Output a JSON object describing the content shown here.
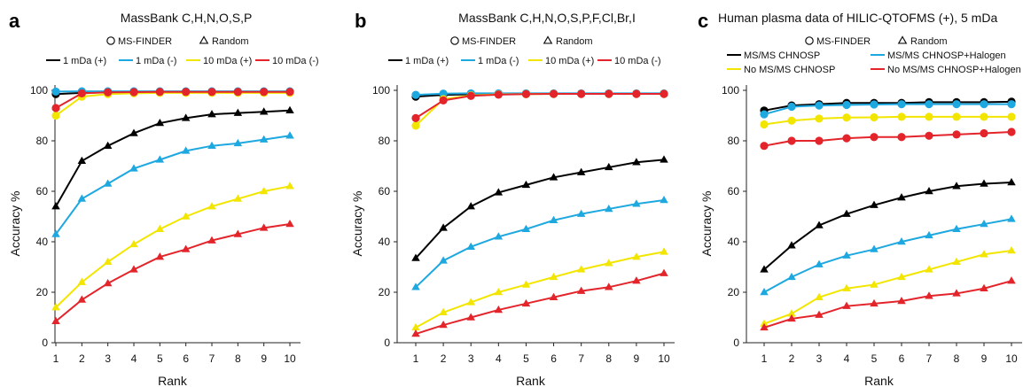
{
  "chart_data": [
    {
      "type": "line",
      "panel_label": "a",
      "title": "MassBank C,H,N,O,S,P",
      "xlabel": "Rank",
      "ylabel": "Accuracy %",
      "ylim": [
        0,
        100
      ],
      "yticks": [
        "0",
        "20",
        "40",
        "60",
        "80",
        "100"
      ],
      "categories": [
        "1",
        "2",
        "3",
        "4",
        "5",
        "6",
        "7",
        "8",
        "9",
        "10"
      ],
      "marker_legend": [
        "MS-FINDER",
        "Random"
      ],
      "series_names": [
        "1 mDa (+)",
        "1 mDa (-)",
        "10 mDa (+)",
        "10 mDa (-)"
      ],
      "series_colors": [
        "#000000",
        "#1ea8e0",
        "#f2e600",
        "#e3242b"
      ],
      "series": [
        {
          "name": "1 mDa (+)",
          "marker": "circle",
          "color": "#000000",
          "values": [
            98.5,
            99.0,
            99.2,
            99.3,
            99.4,
            99.4,
            99.4,
            99.4,
            99.4,
            99.4
          ]
        },
        {
          "name": "1 mDa (-)",
          "marker": "circle",
          "color": "#1ea8e0",
          "values": [
            99.5,
            99.6,
            99.6,
            99.6,
            99.6,
            99.6,
            99.6,
            99.6,
            99.6,
            99.6
          ]
        },
        {
          "name": "10 mDa (+)",
          "marker": "circle",
          "color": "#f2e600",
          "values": [
            90.0,
            97.5,
            98.5,
            98.8,
            99.0,
            99.0,
            99.0,
            99.0,
            99.0,
            99.0
          ]
        },
        {
          "name": "10 mDa (-)",
          "marker": "circle",
          "color": "#e3242b",
          "values": [
            93.0,
            98.8,
            99.2,
            99.3,
            99.4,
            99.4,
            99.4,
            99.4,
            99.4,
            99.4
          ]
        },
        {
          "name": "1 mDa (+)",
          "marker": "triangle",
          "color": "#000000",
          "values": [
            54,
            72,
            78,
            83,
            87,
            89,
            90.5,
            91,
            91.5,
            92
          ]
        },
        {
          "name": "1 mDa (-)",
          "marker": "triangle",
          "color": "#1ea8e0",
          "values": [
            43,
            57,
            63,
            69,
            72.5,
            76,
            78,
            79,
            80.5,
            82
          ]
        },
        {
          "name": "10 mDa (+)",
          "marker": "triangle",
          "color": "#f2e600",
          "values": [
            14,
            24,
            32,
            39,
            45,
            50,
            54,
            57,
            60,
            62
          ]
        },
        {
          "name": "10 mDa (-)",
          "marker": "triangle",
          "color": "#e3242b",
          "values": [
            8.5,
            17,
            23.5,
            29,
            34,
            37,
            40.5,
            43,
            45.5,
            47
          ]
        }
      ]
    },
    {
      "type": "line",
      "panel_label": "b",
      "title": "MassBank C,H,N,O,S,P,F,Cl,Br,I",
      "xlabel": "Rank",
      "ylabel": "Accuracy %",
      "ylim": [
        0,
        100
      ],
      "yticks": [
        "0",
        "20",
        "40",
        "60",
        "80",
        "100"
      ],
      "categories": [
        "1",
        "2",
        "3",
        "4",
        "5",
        "6",
        "7",
        "8",
        "9",
        "10"
      ],
      "marker_legend": [
        "MS-FINDER",
        "Random"
      ],
      "series_names": [
        "1 mDa (+)",
        "1 mDa (-)",
        "10 mDa (+)",
        "10 mDa (-)"
      ],
      "series_colors": [
        "#000000",
        "#1ea8e0",
        "#f2e600",
        "#e3242b"
      ],
      "series": [
        {
          "name": "1 mDa (+)",
          "marker": "circle",
          "color": "#000000",
          "values": [
            97.5,
            98.2,
            98.4,
            98.5,
            98.6,
            98.6,
            98.6,
            98.6,
            98.6,
            98.6
          ]
        },
        {
          "name": "1 mDa (-)",
          "marker": "circle",
          "color": "#1ea8e0",
          "values": [
            98.2,
            98.7,
            98.8,
            98.8,
            98.8,
            98.8,
            98.8,
            98.8,
            98.8,
            98.8
          ]
        },
        {
          "name": "10 mDa (+)",
          "marker": "circle",
          "color": "#f2e600",
          "values": [
            86,
            96.5,
            98.0,
            98.4,
            98.5,
            98.6,
            98.6,
            98.6,
            98.6,
            98.6
          ]
        },
        {
          "name": "10 mDa (-)",
          "marker": "circle",
          "color": "#e3242b",
          "values": [
            89,
            96,
            97.8,
            98.3,
            98.5,
            98.6,
            98.6,
            98.6,
            98.6,
            98.6
          ]
        },
        {
          "name": "1 mDa (+)",
          "marker": "triangle",
          "color": "#000000",
          "values": [
            33.5,
            45.5,
            54,
            59.5,
            62.5,
            65.5,
            67.5,
            69.5,
            71.5,
            72.5
          ]
        },
        {
          "name": "1 mDa (-)",
          "marker": "triangle",
          "color": "#1ea8e0",
          "values": [
            22,
            32.5,
            38,
            42,
            45,
            48.5,
            51,
            53,
            55,
            56.5
          ]
        },
        {
          "name": "10 mDa (+)",
          "marker": "triangle",
          "color": "#f2e600",
          "values": [
            6,
            12,
            16,
            20,
            23,
            26,
            29,
            31.5,
            34,
            36
          ]
        },
        {
          "name": "10 mDa (-)",
          "marker": "triangle",
          "color": "#e3242b",
          "values": [
            3.5,
            7,
            10,
            13,
            15.5,
            18,
            20.5,
            22,
            24.5,
            27.5
          ]
        }
      ]
    },
    {
      "type": "line",
      "panel_label": "c",
      "title": "Human plasma data of HILIC-QTOFMS (+), 5 mDa",
      "xlabel": "Rank",
      "ylabel": "Accuracy %",
      "ylim": [
        0,
        100
      ],
      "yticks": [
        "0",
        "20",
        "40",
        "60",
        "80",
        "100"
      ],
      "categories": [
        "1",
        "2",
        "3",
        "4",
        "5",
        "6",
        "7",
        "8",
        "9",
        "10"
      ],
      "marker_legend": [
        "MS-FINDER",
        "Random"
      ],
      "series_names": [
        "MS/MS CHNOSP",
        "MS/MS CHNOSP+Halogen",
        "No MS/MS CHNOSP",
        "No MS/MS CHNOSP+Halogen"
      ],
      "series_colors": [
        "#000000",
        "#1ea8e0",
        "#f2e600",
        "#e3242b"
      ],
      "series": [
        {
          "name": "MS/MS CHNOSP",
          "marker": "circle",
          "color": "#000000",
          "values": [
            92,
            94,
            94.5,
            95,
            95,
            95,
            95.3,
            95.3,
            95.3,
            95.5
          ]
        },
        {
          "name": "MS/MS CHNOSP+Halogen",
          "marker": "circle",
          "color": "#1ea8e0",
          "values": [
            90.5,
            93.5,
            94,
            94.2,
            94.4,
            94.5,
            94.5,
            94.5,
            94.5,
            94.5
          ]
        },
        {
          "name": "No MS/MS CHNOSP",
          "marker": "circle",
          "color": "#f2e600",
          "values": [
            86.5,
            88,
            88.8,
            89.2,
            89.3,
            89.5,
            89.5,
            89.5,
            89.5,
            89.5
          ]
        },
        {
          "name": "No MS/MS CHNOSP+Halogen",
          "marker": "circle",
          "color": "#e3242b",
          "values": [
            78,
            80,
            80,
            81,
            81.5,
            81.5,
            82,
            82.5,
            83,
            83.5
          ]
        },
        {
          "name": "MS/MS CHNOSP",
          "marker": "triangle",
          "color": "#000000",
          "values": [
            29,
            38.5,
            46.5,
            51,
            54.5,
            57.5,
            60,
            62,
            63,
            63.5
          ]
        },
        {
          "name": "MS/MS CHNOSP+Halogen",
          "marker": "triangle",
          "color": "#1ea8e0",
          "values": [
            20,
            26,
            31,
            34.5,
            37,
            40,
            42.5,
            45,
            47,
            49
          ]
        },
        {
          "name": "No MS/MS CHNOSP",
          "marker": "triangle",
          "color": "#f2e600",
          "values": [
            7.5,
            11.5,
            18,
            21.5,
            23,
            26,
            29,
            32,
            35,
            36.5
          ]
        },
        {
          "name": "No MS/MS CHNOSP+Halogen",
          "marker": "triangle",
          "color": "#e3242b",
          "values": [
            6,
            9.5,
            11,
            14.5,
            15.5,
            16.5,
            18.5,
            19.5,
            21.5,
            24.5
          ]
        }
      ]
    }
  ]
}
